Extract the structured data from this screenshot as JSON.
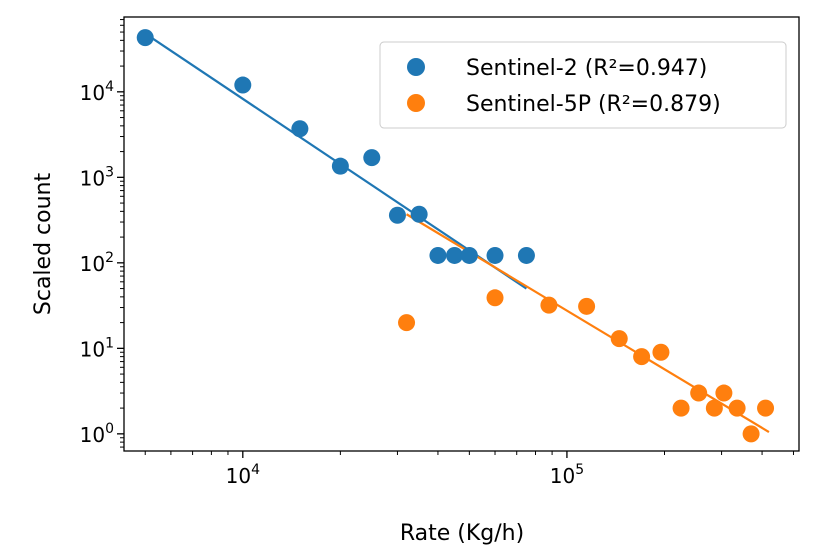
{
  "chart_data": {
    "type": "scatter",
    "title": "",
    "xlabel": "Rate (Kg/h)",
    "ylabel": "Scaled count",
    "xscale": "log",
    "yscale": "log",
    "xlim": [
      4300,
      520000
    ],
    "ylim": [
      0.63,
      75000
    ],
    "legend_position": "top-right",
    "x_ticks": [
      {
        "value": 10000,
        "base": "10",
        "exp": "4"
      },
      {
        "value": 100000,
        "base": "10",
        "exp": "5"
      }
    ],
    "y_ticks": [
      {
        "value": 1,
        "base": "10",
        "exp": "0"
      },
      {
        "value": 10,
        "base": "10",
        "exp": "1"
      },
      {
        "value": 100,
        "base": "10",
        "exp": "2"
      },
      {
        "value": 1000,
        "base": "10",
        "exp": "3"
      },
      {
        "value": 10000,
        "base": "10",
        "exp": "4"
      }
    ],
    "series": [
      {
        "name": "Sentinel-2 (R²=0.947)",
        "color": "#1f77b4",
        "points": [
          [
            5000,
            43000
          ],
          [
            10000,
            12000
          ],
          [
            15000,
            3700
          ],
          [
            20000,
            1350
          ],
          [
            25000,
            1700
          ],
          [
            30000,
            360
          ],
          [
            35000,
            370
          ],
          [
            40000,
            122
          ],
          [
            45000,
            122
          ],
          [
            50000,
            122
          ],
          [
            60000,
            122
          ],
          [
            75000,
            122
          ]
        ],
        "fit_line": [
          [
            5000,
            48000
          ],
          [
            75000,
            50
          ]
        ]
      },
      {
        "name": "Sentinel-5P (R²=0.879)",
        "color": "#ff7f0e",
        "points": [
          [
            32000,
            20
          ],
          [
            60000,
            39
          ],
          [
            88000,
            32
          ],
          [
            115000,
            31
          ],
          [
            145000,
            13
          ],
          [
            170000,
            8
          ],
          [
            195000,
            9
          ],
          [
            225000,
            2
          ],
          [
            255000,
            3
          ],
          [
            285000,
            2
          ],
          [
            305000,
            3
          ],
          [
            335000,
            2
          ],
          [
            370000,
            1
          ],
          [
            410000,
            2
          ]
        ],
        "fit_line": [
          [
            32000,
            370
          ],
          [
            420000,
            1.05
          ]
        ]
      }
    ]
  }
}
